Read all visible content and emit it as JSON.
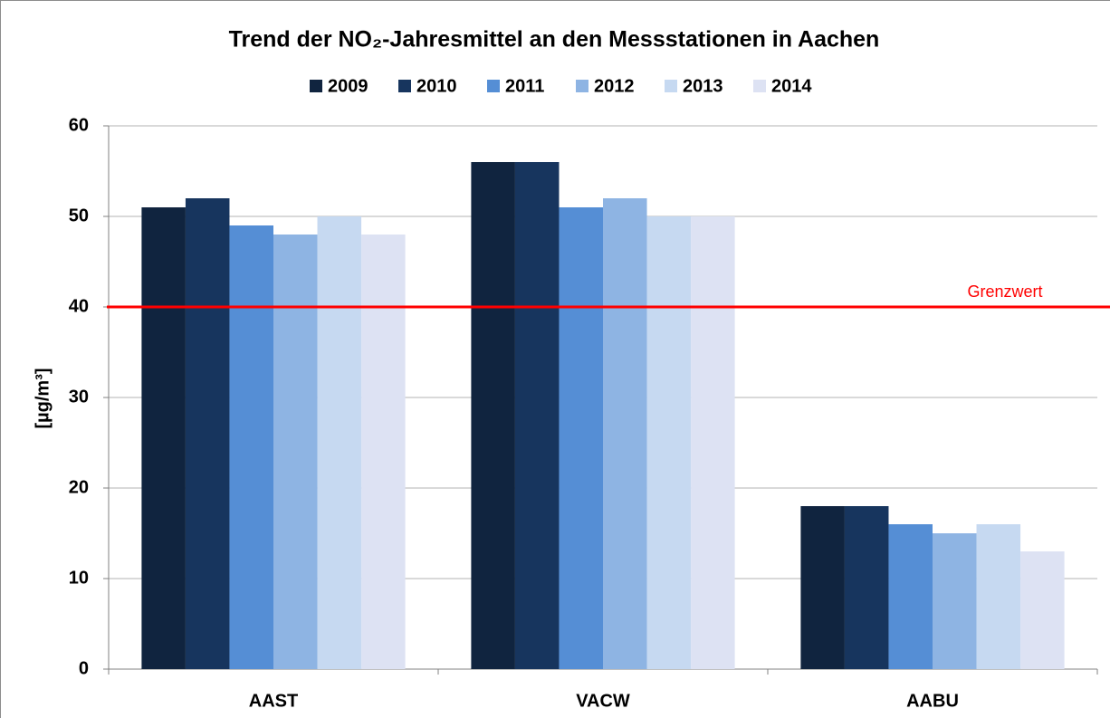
{
  "chart_data": {
    "type": "bar",
    "title": "Trend der NO₂-Jahresmittel an den Messstationen in Aachen",
    "y_label": "[µg/m³]",
    "categories": [
      "AAST",
      "VACW",
      "AABU"
    ],
    "series": [
      {
        "name": "2009",
        "color": "#10243f",
        "values": [
          51,
          56,
          18
        ]
      },
      {
        "name": "2010",
        "color": "#17355e",
        "values": [
          52,
          56,
          18
        ]
      },
      {
        "name": "2011",
        "color": "#558ed5",
        "values": [
          49,
          51,
          16
        ]
      },
      {
        "name": "2012",
        "color": "#8eb4e3",
        "values": [
          48,
          52,
          15
        ]
      },
      {
        "name": "2013",
        "color": "#c6d9f1",
        "values": [
          50,
          50,
          16
        ]
      },
      {
        "name": "2014",
        "color": "#dde2f3",
        "values": [
          48,
          50,
          13
        ]
      }
    ],
    "ylim": [
      0,
      60
    ],
    "yticks": [
      0,
      10,
      20,
      30,
      40,
      50,
      60
    ],
    "grid": true,
    "legend": "top",
    "threshold": {
      "value": 40,
      "label": "Grenzwert",
      "color": "#ff0000"
    }
  }
}
